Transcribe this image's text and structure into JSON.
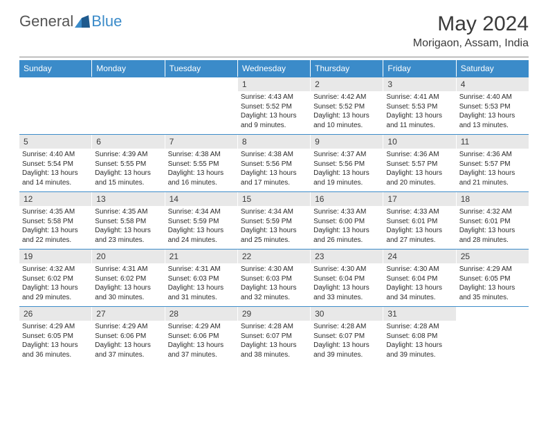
{
  "logo": {
    "text1": "General",
    "text2": "Blue"
  },
  "title": "May 2024",
  "location": "Morigaon, Assam, India",
  "colors": {
    "header_bg": "#3b8bc9",
    "header_text": "#ffffff",
    "daynum_bg": "#e8e8e8",
    "text": "#3a3a3a",
    "logo_gray": "#545454",
    "logo_blue": "#3b8bc9",
    "divider": "#888888"
  },
  "day_headers": [
    "Sunday",
    "Monday",
    "Tuesday",
    "Wednesday",
    "Thursday",
    "Friday",
    "Saturday"
  ],
  "weeks": [
    [
      {
        "n": "",
        "sr": "",
        "ss": "",
        "dl": ""
      },
      {
        "n": "",
        "sr": "",
        "ss": "",
        "dl": ""
      },
      {
        "n": "",
        "sr": "",
        "ss": "",
        "dl": ""
      },
      {
        "n": "1",
        "sr": "Sunrise: 4:43 AM",
        "ss": "Sunset: 5:52 PM",
        "dl": "Daylight: 13 hours and 9 minutes."
      },
      {
        "n": "2",
        "sr": "Sunrise: 4:42 AM",
        "ss": "Sunset: 5:52 PM",
        "dl": "Daylight: 13 hours and 10 minutes."
      },
      {
        "n": "3",
        "sr": "Sunrise: 4:41 AM",
        "ss": "Sunset: 5:53 PM",
        "dl": "Daylight: 13 hours and 11 minutes."
      },
      {
        "n": "4",
        "sr": "Sunrise: 4:40 AM",
        "ss": "Sunset: 5:53 PM",
        "dl": "Daylight: 13 hours and 13 minutes."
      }
    ],
    [
      {
        "n": "5",
        "sr": "Sunrise: 4:40 AM",
        "ss": "Sunset: 5:54 PM",
        "dl": "Daylight: 13 hours and 14 minutes."
      },
      {
        "n": "6",
        "sr": "Sunrise: 4:39 AM",
        "ss": "Sunset: 5:55 PM",
        "dl": "Daylight: 13 hours and 15 minutes."
      },
      {
        "n": "7",
        "sr": "Sunrise: 4:38 AM",
        "ss": "Sunset: 5:55 PM",
        "dl": "Daylight: 13 hours and 16 minutes."
      },
      {
        "n": "8",
        "sr": "Sunrise: 4:38 AM",
        "ss": "Sunset: 5:56 PM",
        "dl": "Daylight: 13 hours and 17 minutes."
      },
      {
        "n": "9",
        "sr": "Sunrise: 4:37 AM",
        "ss": "Sunset: 5:56 PM",
        "dl": "Daylight: 13 hours and 19 minutes."
      },
      {
        "n": "10",
        "sr": "Sunrise: 4:36 AM",
        "ss": "Sunset: 5:57 PM",
        "dl": "Daylight: 13 hours and 20 minutes."
      },
      {
        "n": "11",
        "sr": "Sunrise: 4:36 AM",
        "ss": "Sunset: 5:57 PM",
        "dl": "Daylight: 13 hours and 21 minutes."
      }
    ],
    [
      {
        "n": "12",
        "sr": "Sunrise: 4:35 AM",
        "ss": "Sunset: 5:58 PM",
        "dl": "Daylight: 13 hours and 22 minutes."
      },
      {
        "n": "13",
        "sr": "Sunrise: 4:35 AM",
        "ss": "Sunset: 5:58 PM",
        "dl": "Daylight: 13 hours and 23 minutes."
      },
      {
        "n": "14",
        "sr": "Sunrise: 4:34 AM",
        "ss": "Sunset: 5:59 PM",
        "dl": "Daylight: 13 hours and 24 minutes."
      },
      {
        "n": "15",
        "sr": "Sunrise: 4:34 AM",
        "ss": "Sunset: 5:59 PM",
        "dl": "Daylight: 13 hours and 25 minutes."
      },
      {
        "n": "16",
        "sr": "Sunrise: 4:33 AM",
        "ss": "Sunset: 6:00 PM",
        "dl": "Daylight: 13 hours and 26 minutes."
      },
      {
        "n": "17",
        "sr": "Sunrise: 4:33 AM",
        "ss": "Sunset: 6:01 PM",
        "dl": "Daylight: 13 hours and 27 minutes."
      },
      {
        "n": "18",
        "sr": "Sunrise: 4:32 AM",
        "ss": "Sunset: 6:01 PM",
        "dl": "Daylight: 13 hours and 28 minutes."
      }
    ],
    [
      {
        "n": "19",
        "sr": "Sunrise: 4:32 AM",
        "ss": "Sunset: 6:02 PM",
        "dl": "Daylight: 13 hours and 29 minutes."
      },
      {
        "n": "20",
        "sr": "Sunrise: 4:31 AM",
        "ss": "Sunset: 6:02 PM",
        "dl": "Daylight: 13 hours and 30 minutes."
      },
      {
        "n": "21",
        "sr": "Sunrise: 4:31 AM",
        "ss": "Sunset: 6:03 PM",
        "dl": "Daylight: 13 hours and 31 minutes."
      },
      {
        "n": "22",
        "sr": "Sunrise: 4:30 AM",
        "ss": "Sunset: 6:03 PM",
        "dl": "Daylight: 13 hours and 32 minutes."
      },
      {
        "n": "23",
        "sr": "Sunrise: 4:30 AM",
        "ss": "Sunset: 6:04 PM",
        "dl": "Daylight: 13 hours and 33 minutes."
      },
      {
        "n": "24",
        "sr": "Sunrise: 4:30 AM",
        "ss": "Sunset: 6:04 PM",
        "dl": "Daylight: 13 hours and 34 minutes."
      },
      {
        "n": "25",
        "sr": "Sunrise: 4:29 AM",
        "ss": "Sunset: 6:05 PM",
        "dl": "Daylight: 13 hours and 35 minutes."
      }
    ],
    [
      {
        "n": "26",
        "sr": "Sunrise: 4:29 AM",
        "ss": "Sunset: 6:05 PM",
        "dl": "Daylight: 13 hours and 36 minutes."
      },
      {
        "n": "27",
        "sr": "Sunrise: 4:29 AM",
        "ss": "Sunset: 6:06 PM",
        "dl": "Daylight: 13 hours and 37 minutes."
      },
      {
        "n": "28",
        "sr": "Sunrise: 4:29 AM",
        "ss": "Sunset: 6:06 PM",
        "dl": "Daylight: 13 hours and 37 minutes."
      },
      {
        "n": "29",
        "sr": "Sunrise: 4:28 AM",
        "ss": "Sunset: 6:07 PM",
        "dl": "Daylight: 13 hours and 38 minutes."
      },
      {
        "n": "30",
        "sr": "Sunrise: 4:28 AM",
        "ss": "Sunset: 6:07 PM",
        "dl": "Daylight: 13 hours and 39 minutes."
      },
      {
        "n": "31",
        "sr": "Sunrise: 4:28 AM",
        "ss": "Sunset: 6:08 PM",
        "dl": "Daylight: 13 hours and 39 minutes."
      },
      {
        "n": "",
        "sr": "",
        "ss": "",
        "dl": ""
      }
    ]
  ]
}
